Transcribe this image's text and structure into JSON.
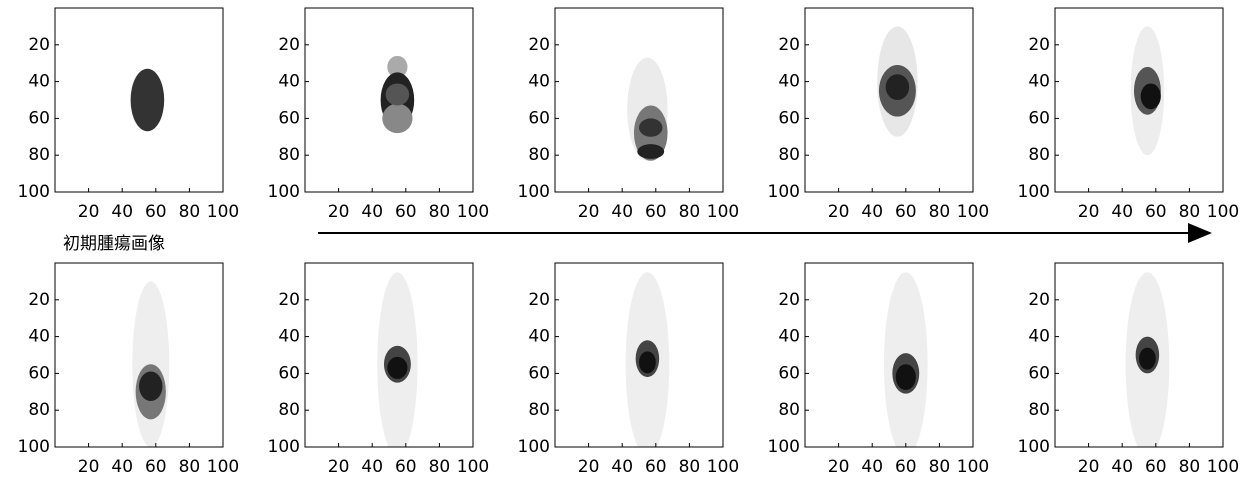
{
  "chart_data": [
    {
      "type": "image",
      "annotation": "初期腫瘍画像",
      "xlim": [
        0,
        100
      ],
      "xticks": [
        20,
        40,
        60,
        80,
        100
      ],
      "ylim": [
        0,
        100
      ],
      "yticks": [
        20,
        40,
        60,
        80,
        100
      ],
      "y_inverted": true
    },
    {
      "type": "image",
      "xlim": [
        0,
        100
      ],
      "xticks": [
        20,
        40,
        60,
        80,
        100
      ],
      "ylim": [
        0,
        100
      ],
      "yticks": [
        20,
        40,
        60,
        80,
        100
      ],
      "y_inverted": true
    },
    {
      "type": "image",
      "xlim": [
        0,
        100
      ],
      "xticks": [
        20,
        40,
        60,
        80,
        100
      ],
      "ylim": [
        0,
        100
      ],
      "yticks": [
        20,
        40,
        60,
        80,
        100
      ],
      "y_inverted": true
    },
    {
      "type": "image",
      "xlim": [
        0,
        100
      ],
      "xticks": [
        20,
        40,
        60,
        80,
        100
      ],
      "ylim": [
        0,
        100
      ],
      "yticks": [
        20,
        40,
        60,
        80,
        100
      ],
      "y_inverted": true
    },
    {
      "type": "image",
      "xlim": [
        0,
        100
      ],
      "xticks": [
        20,
        40,
        60,
        80,
        100
      ],
      "ylim": [
        0,
        100
      ],
      "yticks": [
        20,
        40,
        60,
        80,
        100
      ],
      "y_inverted": true
    },
    {
      "type": "image",
      "xlim": [
        0,
        100
      ],
      "xticks": [
        20,
        40,
        60,
        80,
        100
      ],
      "ylim": [
        0,
        100
      ],
      "yticks": [
        20,
        40,
        60,
        80,
        100
      ],
      "y_inverted": true
    },
    {
      "type": "image",
      "xlim": [
        0,
        100
      ],
      "xticks": [
        20,
        40,
        60,
        80,
        100
      ],
      "ylim": [
        0,
        100
      ],
      "yticks": [
        20,
        40,
        60,
        80,
        100
      ],
      "y_inverted": true
    },
    {
      "type": "image",
      "xlim": [
        0,
        100
      ],
      "xticks": [
        20,
        40,
        60,
        80,
        100
      ],
      "ylim": [
        0,
        100
      ],
      "yticks": [
        20,
        40,
        60,
        80,
        100
      ],
      "y_inverted": true
    },
    {
      "type": "image",
      "xlim": [
        0,
        100
      ],
      "xticks": [
        20,
        40,
        60,
        80,
        100
      ],
      "ylim": [
        0,
        100
      ],
      "yticks": [
        20,
        40,
        60,
        80,
        100
      ],
      "y_inverted": true
    },
    {
      "type": "image",
      "xlim": [
        0,
        100
      ],
      "xticks": [
        20,
        40,
        60,
        80,
        100
      ],
      "ylim": [
        0,
        100
      ],
      "yticks": [
        20,
        40,
        60,
        80,
        100
      ],
      "y_inverted": true
    }
  ]
}
